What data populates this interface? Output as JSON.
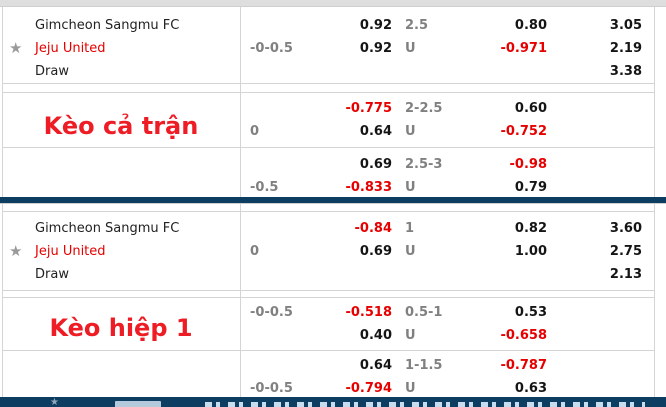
{
  "colors": {
    "negative_red": "#e60000",
    "label_red": "#ee1c24",
    "navy_divider": "#0d3d61",
    "line_gray": "#808080",
    "border_gray": "#d4d4d4"
  },
  "sections": [
    {
      "label": "Kèo cả trận",
      "teams": {
        "home": "Gimcheon Sangmu FC",
        "away": "Jeju United",
        "draw": "Draw"
      },
      "starred_team": "Jeju United",
      "groups": [
        {
          "handicap": "-0-0.5",
          "handicap_row": 2,
          "rows": [
            {
              "o1": "0.92",
              "line": "2.5",
              "o2": "0.80",
              "x2": "3.05"
            },
            {
              "o1": "0.92",
              "line": "U",
              "o2": "-0.971",
              "x2": "2.19"
            },
            {
              "o1": "",
              "line": "",
              "o2": "",
              "x2": "3.38"
            }
          ]
        },
        {
          "handicap": "0",
          "handicap_row": 2,
          "rows": [
            {
              "o1": "-0.775",
              "line": "2-2.5",
              "o2": "0.60",
              "x2": ""
            },
            {
              "o1": "0.64",
              "line": "U",
              "o2": "-0.752",
              "x2": ""
            }
          ]
        },
        {
          "handicap": "-0.5",
          "handicap_row": 2,
          "rows": [
            {
              "o1": "0.69",
              "line": "2.5-3",
              "o2": "-0.98",
              "x2": ""
            },
            {
              "o1": "-0.833",
              "line": "U",
              "o2": "0.79",
              "x2": ""
            }
          ]
        }
      ]
    },
    {
      "label": "Kèo hiệp 1",
      "teams": {
        "home": "Gimcheon Sangmu FC",
        "away": "Jeju United",
        "draw": "Draw"
      },
      "starred_team": "Jeju United",
      "groups": [
        {
          "handicap": "0",
          "handicap_row": 2,
          "rows": [
            {
              "o1": "-0.84",
              "line": "1",
              "o2": "0.82",
              "x2": "3.60"
            },
            {
              "o1": "0.69",
              "line": "U",
              "o2": "1.00",
              "x2": "2.75"
            },
            {
              "o1": "",
              "line": "",
              "o2": "",
              "x2": "2.13"
            }
          ]
        },
        {
          "handicap": "-0-0.5",
          "handicap_row": 1,
          "rows": [
            {
              "o1": "-0.518",
              "line": "0.5-1",
              "o2": "0.53",
              "x2": ""
            },
            {
              "o1": "0.40",
              "line": "U",
              "o2": "-0.658",
              "x2": ""
            }
          ]
        },
        {
          "handicap": "-0-0.5",
          "handicap_row": 2,
          "rows": [
            {
              "o1": "0.64",
              "line": "1-1.5",
              "o2": "-0.787",
              "x2": ""
            },
            {
              "o1": "-0.794",
              "line": "U",
              "o2": "0.63",
              "x2": ""
            }
          ]
        }
      ]
    }
  ]
}
